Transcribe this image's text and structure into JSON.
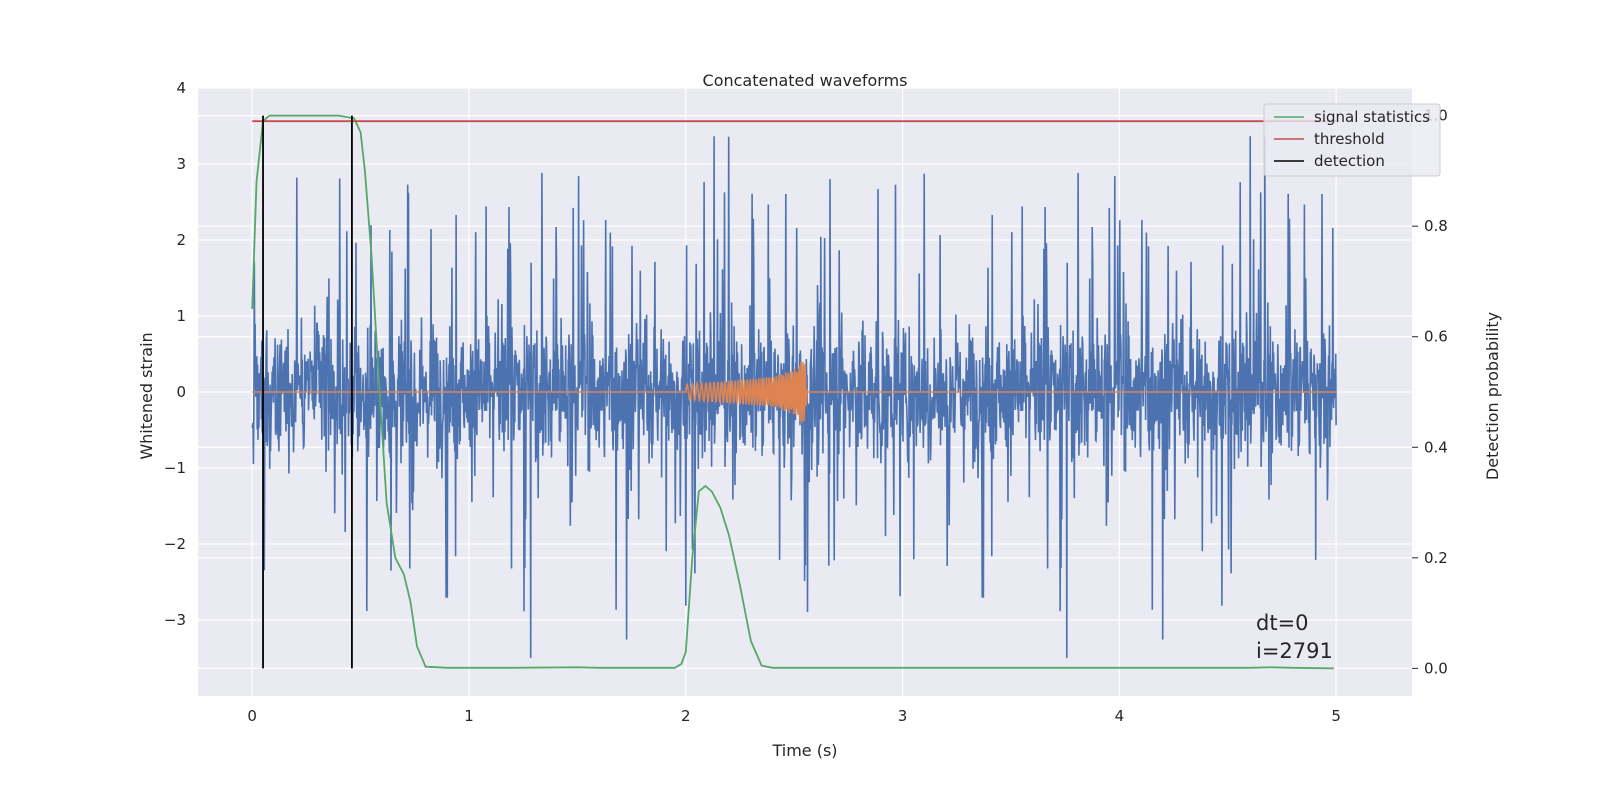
{
  "chart_data": {
    "type": "line",
    "title": "Concatenated waveforms",
    "xlabel": "Time (s)",
    "ylabel": "Whitened strain",
    "y2label": "Detection probability",
    "xlim": [
      -0.25,
      5.35
    ],
    "ylim": [
      -4.0,
      4.0
    ],
    "y2lim": [
      -0.05,
      1.05
    ],
    "xticks": [
      0,
      1,
      2,
      3,
      4,
      5
    ],
    "xtick_labels": [
      "0",
      "1",
      "2",
      "3",
      "4",
      "5"
    ],
    "yticks": [
      4,
      3,
      2,
      1,
      0,
      -1,
      -2,
      -3
    ],
    "ytick_labels": [
      "4",
      "3",
      "2",
      "1",
      "0",
      "−1",
      "−2",
      "−3"
    ],
    "y2ticks": [
      1.0,
      0.8,
      0.6,
      0.4,
      0.2,
      0.0
    ],
    "y2tick_labels": [
      "1.0",
      "0.8",
      "0.6",
      "0.4",
      "0.2",
      "0.0"
    ],
    "grid": true,
    "legend_position": "top-right",
    "colors": {
      "noise": "#4c72b0",
      "waveform": "#dd8452",
      "signal_statistics": "#55a868",
      "threshold": "#c44e52",
      "detection": "#000000",
      "plot_bg": "#eaeaf2",
      "grid": "#ffffff"
    },
    "series": [
      {
        "name": "signal statistics",
        "axis": "right",
        "x": [
          0.0,
          0.02,
          0.05,
          0.08,
          0.12,
          0.2,
          0.3,
          0.4,
          0.47,
          0.5,
          0.52,
          0.55,
          0.58,
          0.62,
          0.66,
          0.7,
          0.73,
          0.76,
          0.8,
          0.9,
          1.2,
          1.5,
          1.6,
          1.95,
          1.98,
          2.0,
          2.03,
          2.06,
          2.09,
          2.12,
          2.16,
          2.2,
          2.25,
          2.3,
          2.35,
          2.4,
          2.6,
          4.6,
          4.7,
          4.8,
          4.99
        ],
        "y": [
          0.65,
          0.88,
          0.99,
          1.0,
          1.0,
          1.0,
          1.0,
          1.0,
          0.995,
          0.97,
          0.9,
          0.75,
          0.55,
          0.3,
          0.2,
          0.17,
          0.12,
          0.04,
          0.003,
          0.001,
          0.001,
          0.002,
          0.001,
          0.001,
          0.008,
          0.03,
          0.2,
          0.32,
          0.33,
          0.32,
          0.29,
          0.24,
          0.15,
          0.05,
          0.005,
          0.001,
          0.001,
          0.001,
          0.002,
          0.001,
          0.0
        ]
      },
      {
        "name": "threshold",
        "axis": "right",
        "x": [
          0,
          5
        ],
        "y": [
          0.99,
          0.99
        ]
      },
      {
        "name": "detection",
        "axis": "right",
        "x": [
          0.05,
          0.46
        ],
        "y_range": [
          0.0,
          1.0
        ]
      },
      {
        "role": "whitened noise strain",
        "axis": "left",
        "x_range": [
          0,
          5
        ],
        "typical_envelope": [
          -0.7,
          0.75
        ],
        "spike_range": [
          -3.6,
          3.65
        ]
      },
      {
        "role": "injected waveform",
        "axis": "left",
        "x": [
          0,
          2.0,
          2.0,
          2.2,
          2.4,
          2.5,
          2.55,
          2.56,
          5
        ],
        "y_envelope": [
          0,
          0,
          0.1,
          0.15,
          0.2,
          0.3,
          0.45,
          0.0,
          0
        ]
      }
    ],
    "legend": [
      "signal statistics",
      "threshold",
      "detection"
    ],
    "annotations": [
      "dt=0",
      "i=2791"
    ]
  }
}
